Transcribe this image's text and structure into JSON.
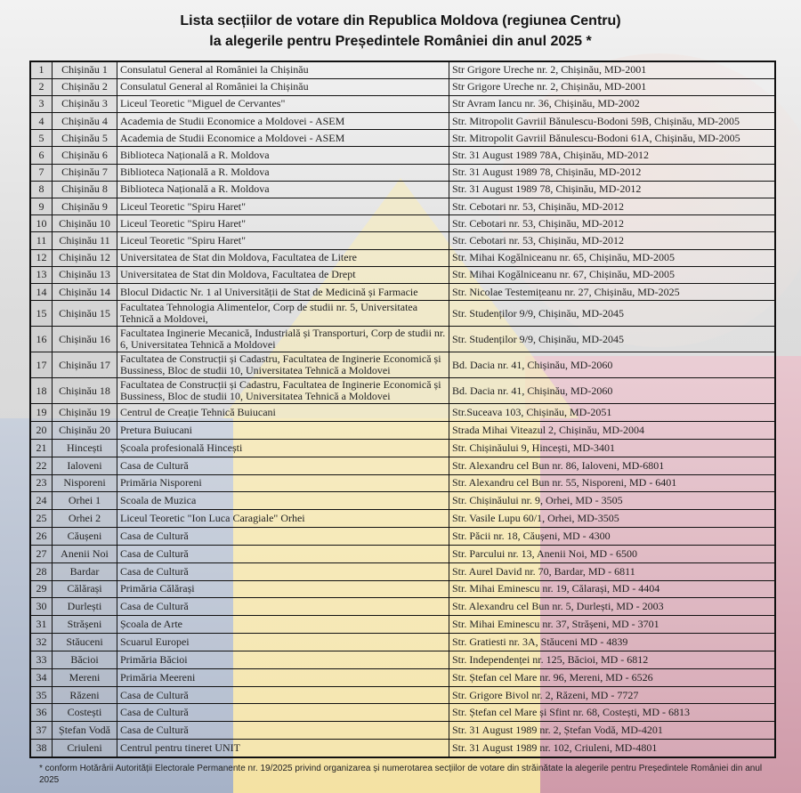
{
  "title_line1": "Lista secțiilor de votare din Republica Moldova (regiunea Centru)",
  "title_line2": "la alegerile pentru Președintele României din anul 2025 *",
  "rows": [
    [
      "1",
      "Chișinău 1",
      "Consulatul General al României la Chișinău",
      "Str Grigore Ureche nr. 2, Chișinău, MD-2001"
    ],
    [
      "2",
      "Chișinău 2",
      "Consulatul General al României la Chișinău",
      "Str Grigore Ureche nr. 2, Chișinău, MD-2001"
    ],
    [
      "3",
      "Chișinău 3",
      "Liceul Teoretic \"Miguel de Cervantes\"",
      "Str Avram Iancu nr. 36, Chișinău, MD-2002"
    ],
    [
      "4",
      "Chișinău 4",
      "Academia de Studii Economice a Moldovei - ASEM",
      "Str. Mitropolit Gavriil Bănulescu-Bodoni 59B, Chișinău, MD-2005"
    ],
    [
      "5",
      "Chișinău 5",
      "Academia de Studii Economice a Moldovei - ASEM",
      "Str. Mitropolit Gavriil Bănulescu-Bodoni 61A, Chișinău, MD-2005"
    ],
    [
      "6",
      "Chișinău 6",
      "Biblioteca Națională a R. Moldova",
      "Str. 31 August 1989 78A, Chișinău, MD-2012"
    ],
    [
      "7",
      "Chișinău 7",
      "Biblioteca Națională a R. Moldova",
      "Str. 31 August 1989 78, Chișinău, MD-2012"
    ],
    [
      "8",
      "Chișinău 8",
      "Biblioteca Națională a R. Moldova",
      "Str.  31 August 1989 78, Chișinău, MD-2012"
    ],
    [
      "9",
      "Chișinău 9",
      "Liceul Teoretic \"Spiru Haret\"",
      "Str. Cebotari nr. 53, Chișinău, MD-2012"
    ],
    [
      "10",
      "Chișinău 10",
      "Liceul Teoretic \"Spiru Haret\"",
      "Str. Cebotari nr. 53, Chișinău, MD-2012"
    ],
    [
      "11",
      "Chișinău 11",
      "Liceul Teoretic \"Spiru Haret\"",
      "Str. Cebotari nr. 53, Chișinău, MD-2012"
    ],
    [
      "12",
      "Chișinău 12",
      "Universitatea de Stat din Moldova, Facultatea de Litere",
      "Str. Mihai Kogălniceanu nr. 65, Chișinău, MD-2005"
    ],
    [
      "13",
      "Chișinău 13",
      "Universitatea de Stat din Moldova, Facultatea de Drept",
      "Str. Mihai Kogălniceanu nr. 67, Chișinău, MD-2005"
    ],
    [
      "14",
      "Chișinău 14",
      "Blocul Didactic Nr. 1 al Universității de Stat de Medicină și Farmacie",
      "Str. Nicolae Testemițeanu nr. 27, Chișinău, MD-2025"
    ],
    [
      "15",
      "Chișinău 15",
      "Facultatea Tehnologia Alimentelor, Corp de studii nr. 5,          Universitatea Tehnică a Moldovei,",
      "Str. Studenților 9/9, Chișinău, MD-2045"
    ],
    [
      "16",
      "Chișinău 16",
      "Facultatea Inginerie Mecanică, Industrială și Transporturi, Corp de studii nr. 6, Universitatea Tehnică a Moldovei",
      "Str. Studenților 9/9, Chișinău, MD-2045"
    ],
    [
      "17",
      "Chișinău 17",
      "Facultatea de Construcții și Cadastru, Facultatea de Inginerie Economică și Bussiness, Bloc de studii 10, Universitatea Tehnică a Moldovei",
      "Bd. Dacia nr. 41, Chișinău, MD-2060"
    ],
    [
      "18",
      "Chișinău 18",
      "Facultatea de Construcții și Cadastru, Facultatea de Inginerie Economică și Bussiness, Bloc de studii 10, Universitatea Tehnică a Moldovei",
      "Bd. Dacia nr. 41, Chișinău, MD-2060"
    ],
    [
      "19",
      "Chișinău 19",
      "Centrul de Creație Tehnică Buiucani",
      "Str.Suceava 103, Chișinău, MD-2051"
    ],
    [
      "20",
      "Chișinău 20",
      "Pretura Buiucani",
      "Strada Mihai Viteazul 2, Chișinău, MD-2004"
    ],
    [
      "21",
      "Hincești",
      "Școala profesională Hincești",
      "Str. Chișinăului 9,  Hincești, MD-3401"
    ],
    [
      "22",
      "Ialoveni",
      "Casa de Cultură",
      "Str. Alexandru cel Bun nr. 86, Ialoveni, MD-6801"
    ],
    [
      "23",
      "Nisporeni",
      "Primăria Nisporeni",
      "Str. Alexandru cel Bun nr. 55, Nisporeni, MD - 6401"
    ],
    [
      "24",
      "Orhei 1",
      "Scoala de Muzica",
      "Str. Chișinăului nr. 9, Orhei, MD - 3505"
    ],
    [
      "25",
      "Orhei 2",
      "Liceul Teoretic \"Ion Luca Caragiale\" Orhei",
      "Str. Vasile Lupu 60/1, Orhei, MD-3505"
    ],
    [
      "26",
      "Căușeni",
      "Casa de Cultură",
      "Str. Păcii nr. 18, Căușeni, MD - 4300"
    ],
    [
      "27",
      "Anenii Noi",
      "Casa de Cultură",
      "Str. Parcului nr. 13, Anenii Noi, MD - 6500"
    ],
    [
      "28",
      "Bardar",
      "Casa de Cultură",
      "Str. Aurel David nr. 70, Bardar, MD - 6811"
    ],
    [
      "29",
      "Călărași",
      "Primăria Călărași",
      "Str. Mihai Eminescu nr. 19, Călarași, MD - 4404"
    ],
    [
      "30",
      "Durlești",
      "Casa de Cultură",
      "Str. Alexandru cel Bun nr. 5, Durlești, MD - 2003"
    ],
    [
      "31",
      "Strășeni",
      "Școala de Arte",
      "Str. Mihai Eminescu nr. 37, Strășeni, MD - 3701"
    ],
    [
      "32",
      "Stăuceni",
      "Scuarul Europei",
      "Str. Gratiesti nr. 3A, Stăuceni MD - 4839"
    ],
    [
      "33",
      "Băcioi",
      "Primăria Băcioi",
      "Str. Independenței nr. 125, Băcioi, MD - 6812"
    ],
    [
      "34",
      "Mereni",
      "Primăria Meereni",
      "Str. Ștefan cel Mare nr. 96, Mereni, MD - 6526"
    ],
    [
      "35",
      "Răzeni",
      "Casa de Cultură",
      "Str. Grigore Bivol nr. 2, Răzeni, MD - 7727"
    ],
    [
      "36",
      "Costești",
      "Casa de Cultură",
      "Str. Ștefan cel Mare și Sfint nr. 68, Costești, MD - 6813"
    ],
    [
      "37",
      "Ștefan Vodă",
      "Casa de Cultură",
      "Str. 31 August 1989 nr. 2, Ștefan Vodă, MD-4201"
    ],
    [
      "38",
      "Criuleni",
      "Centrul pentru tineret UNIT",
      "Str. 31 August 1989 nr. 102, Criuleni, MD-4801"
    ]
  ],
  "footnote": "* conform Hotărârii Autorității Electorale Permanente nr. 19/2025 privind organizarea și numerotarea secțiilor de votare din străinătate la alegerile pentru Președintele României din anul 2025",
  "colors": {
    "blue": "#a6b2c7",
    "yellow": "#f4e2a3",
    "red": "#cf9aa9"
  }
}
